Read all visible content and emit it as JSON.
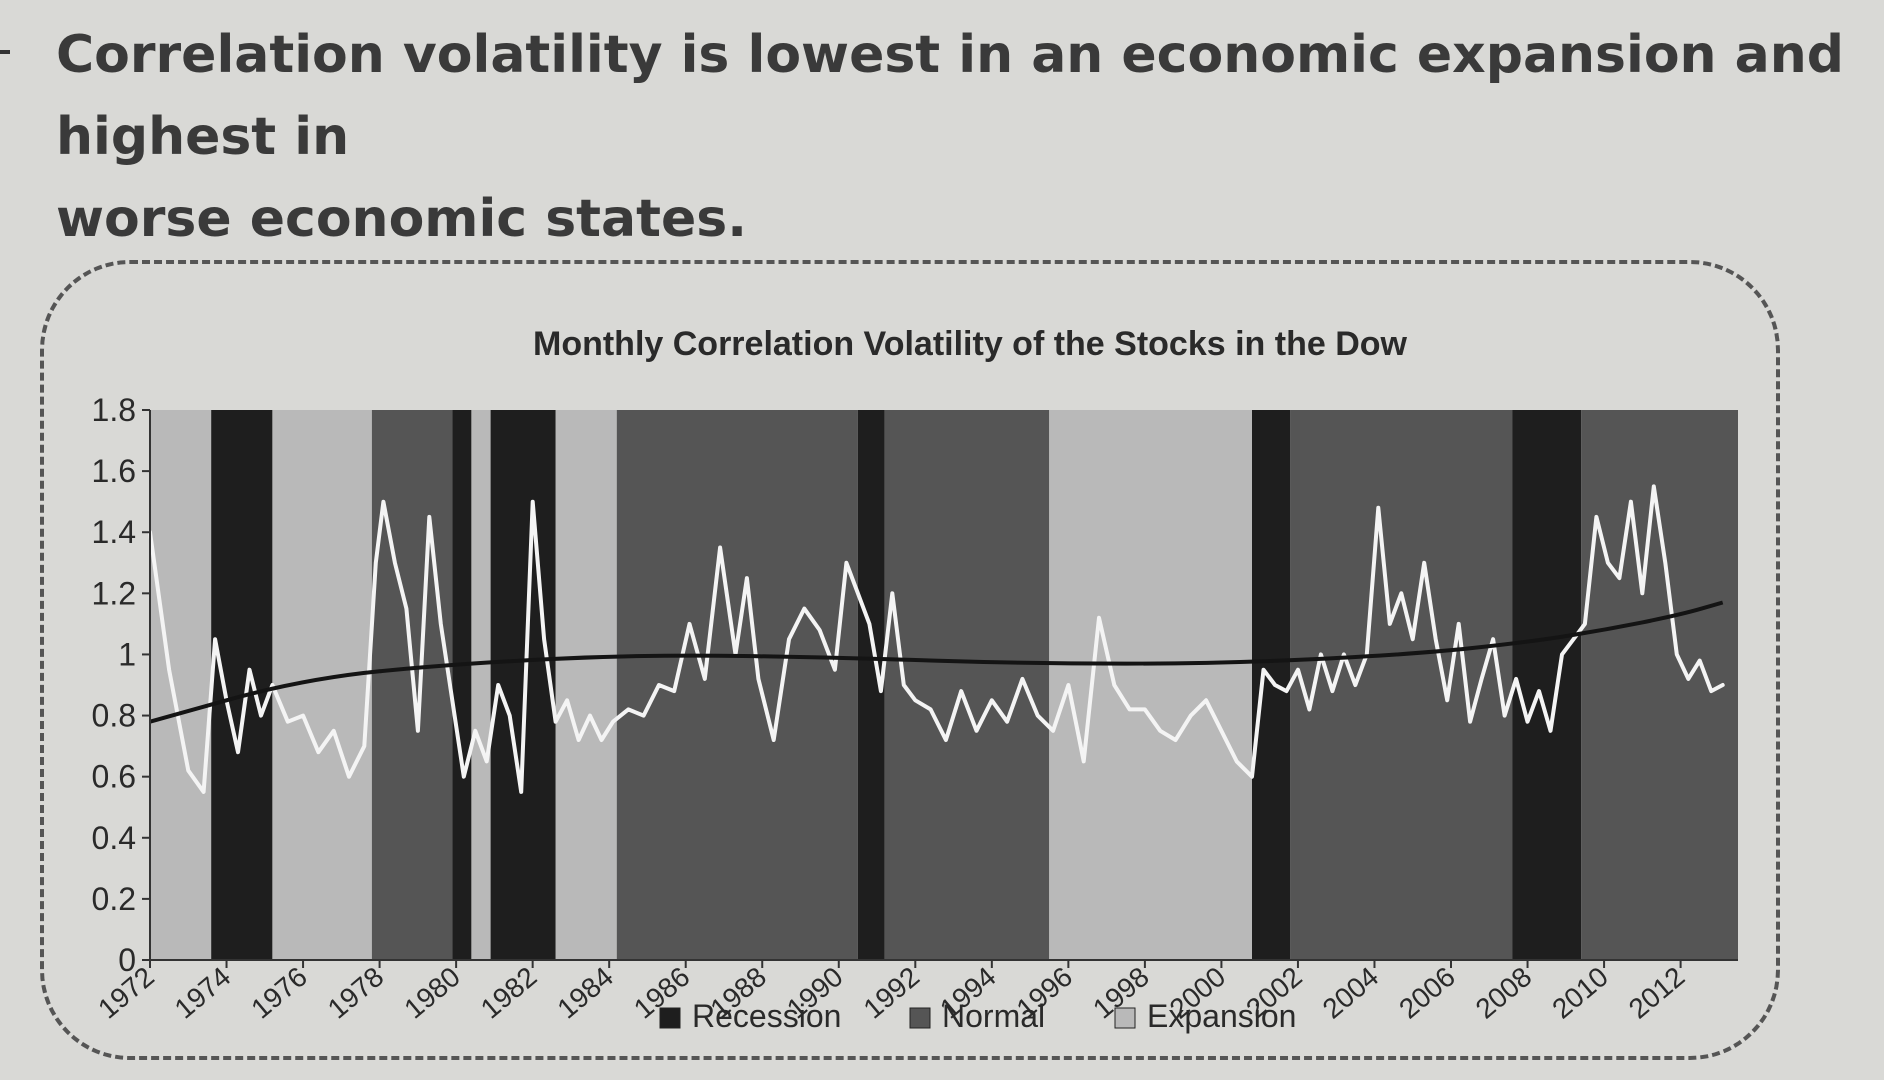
{
  "headline": {
    "line1": "Correlation volatility is lowest in an economic expansion and highest in",
    "line2": "worse economic states."
  },
  "chart_data": {
    "type": "line",
    "title": "Monthly Correlation Volatility of the Stocks in the Dow",
    "xlabel": "",
    "ylabel": "",
    "xlim": [
      1972,
      2013.5
    ],
    "ylim": [
      0,
      1.8
    ],
    "y_ticks": [
      "0",
      "0.2",
      "0.4",
      "0.6",
      "0.8",
      "1",
      "1.2",
      "1.4",
      "1.6",
      "1.8"
    ],
    "x_ticks": [
      "1972",
      "1974",
      "1976",
      "1978",
      "1980",
      "1982",
      "1984",
      "1986",
      "1988",
      "1990",
      "1992",
      "1994",
      "1996",
      "1998",
      "2000",
      "2002",
      "2004",
      "2006",
      "2008",
      "2010",
      "2012"
    ],
    "grid": false,
    "legend": {
      "placement": "bottom",
      "entries": [
        {
          "label": "Recession",
          "color": "#1e1e1e"
        },
        {
          "label": "Normal",
          "color": "#555555"
        },
        {
          "label": "Expansion",
          "color": "#b9b9b9"
        }
      ]
    },
    "regimes": [
      {
        "start": 1972.0,
        "end": 1973.6,
        "state": "Expansion"
      },
      {
        "start": 1973.6,
        "end": 1975.2,
        "state": "Recession"
      },
      {
        "start": 1975.2,
        "end": 1977.8,
        "state": "Expansion"
      },
      {
        "start": 1977.8,
        "end": 1979.9,
        "state": "Normal"
      },
      {
        "start": 1979.9,
        "end": 1980.4,
        "state": "Recession"
      },
      {
        "start": 1980.4,
        "end": 1980.9,
        "state": "Expansion"
      },
      {
        "start": 1980.9,
        "end": 1982.6,
        "state": "Recession"
      },
      {
        "start": 1982.6,
        "end": 1984.2,
        "state": "Expansion"
      },
      {
        "start": 1984.2,
        "end": 1990.5,
        "state": "Normal"
      },
      {
        "start": 1990.5,
        "end": 1991.2,
        "state": "Recession"
      },
      {
        "start": 1991.2,
        "end": 1995.5,
        "state": "Normal"
      },
      {
        "start": 1995.5,
        "end": 2000.8,
        "state": "Expansion"
      },
      {
        "start": 2000.8,
        "end": 2001.8,
        "state": "Recession"
      },
      {
        "start": 2001.8,
        "end": 2007.6,
        "state": "Normal"
      },
      {
        "start": 2007.6,
        "end": 2009.4,
        "state": "Recession"
      },
      {
        "start": 2009.4,
        "end": 2013.5,
        "state": "Normal"
      }
    ],
    "series": [
      {
        "x": [
          1972.0,
          1972.5,
          1973.0,
          1973.4,
          1973.7,
          1974.0,
          1974.3,
          1974.6,
          1974.9,
          1975.2,
          1975.6,
          1976.0,
          1976.4,
          1976.8,
          1977.2,
          1977.6,
          1977.9,
          1978.1,
          1978.4,
          1978.7,
          1979.0,
          1979.3,
          1979.6,
          1979.9,
          1980.2,
          1980.5,
          1980.8,
          1981.1,
          1981.4,
          1981.7,
          1982.0,
          1982.3,
          1982.6,
          1982.9,
          1983.2,
          1983.5,
          1983.8,
          1984.1,
          1984.5,
          1984.9,
          1985.3,
          1985.7,
          1986.1,
          1986.5,
          1986.9,
          1987.3,
          1987.6,
          1987.9,
          1988.3,
          1988.7,
          1989.1,
          1989.5,
          1989.9,
          1990.2,
          1990.5,
          1990.8,
          1991.1,
          1991.4,
          1991.7,
          1992.0,
          1992.4,
          1992.8,
          1993.2,
          1993.6,
          1994.0,
          1994.4,
          1994.8,
          1995.2,
          1995.6,
          1996.0,
          1996.4,
          1996.8,
          1997.2,
          1997.6,
          1998.0,
          1998.4,
          1998.8,
          1999.2,
          1999.6,
          2000.0,
          2000.4,
          2000.8,
          2001.1,
          2001.4,
          2001.7,
          2002.0,
          2002.3,
          2002.6,
          2002.9,
          2003.2,
          2003.5,
          2003.8,
          2004.1,
          2004.4,
          2004.7,
          2005.0,
          2005.3,
          2005.6,
          2005.9,
          2006.2,
          2006.5,
          2006.8,
          2007.1,
          2007.4,
          2007.7,
          2008.0,
          2008.3,
          2008.6,
          2008.9,
          2009.2,
          2009.5,
          2009.8,
          2010.1,
          2010.4,
          2010.7,
          2011.0,
          2011.3,
          2011.6,
          2011.9,
          2012.2,
          2012.5,
          2012.8,
          2013.1
        ],
        "values": [
          1.4,
          0.95,
          0.62,
          0.55,
          1.05,
          0.85,
          0.68,
          0.95,
          0.8,
          0.9,
          0.78,
          0.8,
          0.68,
          0.75,
          0.6,
          0.7,
          1.3,
          1.5,
          1.3,
          1.15,
          0.75,
          1.45,
          1.1,
          0.85,
          0.6,
          0.75,
          0.65,
          0.9,
          0.8,
          0.55,
          1.5,
          1.05,
          0.78,
          0.85,
          0.72,
          0.8,
          0.72,
          0.78,
          0.82,
          0.8,
          0.9,
          0.88,
          1.1,
          0.92,
          1.35,
          1.0,
          1.25,
          0.92,
          0.72,
          1.05,
          1.15,
          1.08,
          0.95,
          1.3,
          1.2,
          1.1,
          0.88,
          1.2,
          0.9,
          0.85,
          0.82,
          0.72,
          0.88,
          0.75,
          0.85,
          0.78,
          0.92,
          0.8,
          0.75,
          0.9,
          0.65,
          1.12,
          0.9,
          0.82,
          0.82,
          0.75,
          0.72,
          0.8,
          0.85,
          0.75,
          0.65,
          0.6,
          0.95,
          0.9,
          0.88,
          0.95,
          0.82,
          1.0,
          0.88,
          1.0,
          0.9,
          1.0,
          1.48,
          1.1,
          1.2,
          1.05,
          1.3,
          1.05,
          0.85,
          1.1,
          0.78,
          0.92,
          1.05,
          0.8,
          0.92,
          0.78,
          0.88,
          0.75,
          1.0,
          1.05,
          1.1,
          1.45,
          1.3,
          1.25,
          1.5,
          1.2,
          1.55,
          1.3,
          1.0,
          0.92,
          0.98,
          0.88,
          0.9
        ]
      },
      {
        "x": [
          1972.0,
          1976.0,
          1980.0,
          1985.0,
          1990.0,
          1995.0,
          2000.0,
          2005.0,
          2008.0,
          2010.0,
          2012.0,
          2013.1
        ],
        "values": [
          0.78,
          0.92,
          0.97,
          1.0,
          0.99,
          0.97,
          0.97,
          1.0,
          1.04,
          1.08,
          1.13,
          1.17
        ]
      }
    ]
  }
}
